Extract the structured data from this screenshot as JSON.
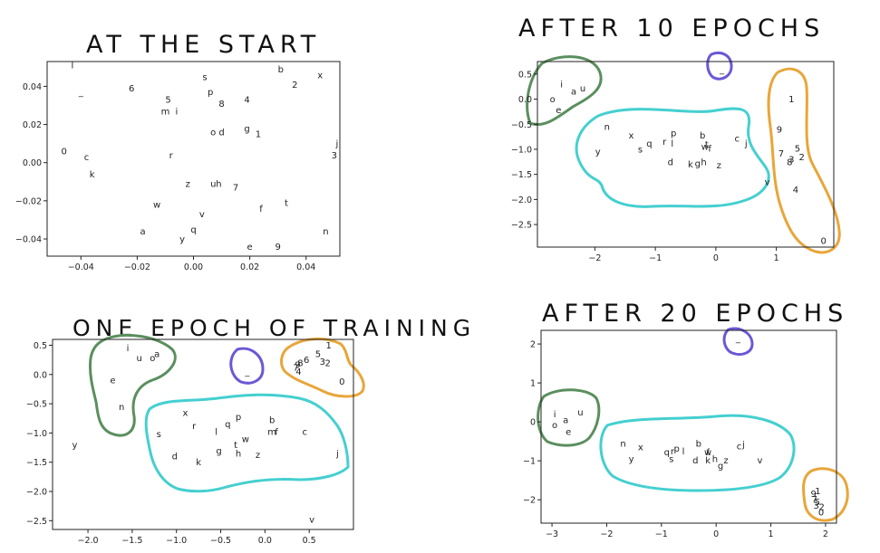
{
  "chart_data": [
    {
      "type": "scatter",
      "title": "AT THE START",
      "xlabel": "",
      "ylabel": "",
      "xlim": [
        -0.052,
        0.052
      ],
      "ylim": [
        -0.049,
        0.053
      ],
      "xticks": [
        -0.04,
        -0.02,
        0.0,
        0.02,
        0.04
      ],
      "xtick_labels": [
        "−0.04",
        "−0.02",
        "0.00",
        "0.02",
        "0.04"
      ],
      "yticks": [
        -0.04,
        -0.02,
        0.0,
        0.02,
        0.04
      ],
      "ytick_labels": [
        "−0.04",
        "−0.02",
        "0.00",
        "0.02",
        "0.04"
      ],
      "grid": false,
      "points": [
        {
          "label": "l",
          "x": -0.043,
          "y": 0.051
        },
        {
          "label": "_",
          "x": -0.04,
          "y": 0.037
        },
        {
          "label": "6",
          "x": -0.022,
          "y": 0.039
        },
        {
          "label": "5",
          "x": -0.009,
          "y": 0.033
        },
        {
          "label": "m",
          "x": -0.01,
          "y": 0.027
        },
        {
          "label": "i",
          "x": -0.006,
          "y": 0.027
        },
        {
          "label": "s",
          "x": 0.004,
          "y": 0.045
        },
        {
          "label": "p",
          "x": 0.006,
          "y": 0.037
        },
        {
          "label": "8",
          "x": 0.01,
          "y": 0.031
        },
        {
          "label": "4",
          "x": 0.019,
          "y": 0.033
        },
        {
          "label": "b",
          "x": 0.031,
          "y": 0.049
        },
        {
          "label": "2",
          "x": 0.036,
          "y": 0.041
        },
        {
          "label": "x",
          "x": 0.045,
          "y": 0.046
        },
        {
          "label": "o",
          "x": 0.007,
          "y": 0.016
        },
        {
          "label": "d",
          "x": 0.01,
          "y": 0.016
        },
        {
          "label": "g",
          "x": 0.019,
          "y": 0.018
        },
        {
          "label": "1",
          "x": 0.023,
          "y": 0.015
        },
        {
          "label": "j",
          "x": 0.051,
          "y": 0.01
        },
        {
          "label": "3",
          "x": 0.05,
          "y": 0.004
        },
        {
          "label": "0",
          "x": -0.046,
          "y": 0.006
        },
        {
          "label": "c",
          "x": -0.038,
          "y": 0.003
        },
        {
          "label": "r",
          "x": -0.008,
          "y": 0.004
        },
        {
          "label": "k",
          "x": -0.036,
          "y": -0.006
        },
        {
          "label": "z",
          "x": -0.002,
          "y": -0.011
        },
        {
          "label": "u",
          "x": 0.007,
          "y": -0.011
        },
        {
          "label": "h",
          "x": 0.009,
          "y": -0.011
        },
        {
          "label": "7",
          "x": 0.015,
          "y": -0.013
        },
        {
          "label": "w",
          "x": -0.013,
          "y": -0.022
        },
        {
          "label": "t",
          "x": 0.033,
          "y": -0.021
        },
        {
          "label": "f",
          "x": 0.024,
          "y": -0.024
        },
        {
          "label": "v",
          "x": 0.003,
          "y": -0.027
        },
        {
          "label": "a",
          "x": -0.018,
          "y": -0.036
        },
        {
          "label": "q",
          "x": 0.0,
          "y": -0.035
        },
        {
          "label": "y",
          "x": -0.004,
          "y": -0.04
        },
        {
          "label": "e",
          "x": 0.02,
          "y": -0.044
        },
        {
          "label": "9",
          "x": 0.03,
          "y": -0.044
        },
        {
          "label": "n",
          "x": 0.047,
          "y": -0.036
        }
      ]
    },
    {
      "type": "scatter",
      "title": "AFTER 10 EPOCHS",
      "xlabel": "",
      "ylabel": "",
      "xlim": [
        -2.95,
        1.95
      ],
      "ylim": [
        -2.95,
        0.75
      ],
      "xticks": [
        -2,
        -1,
        0,
        1
      ],
      "xtick_labels": [
        "−2",
        "−1",
        "0",
        "1"
      ],
      "yticks": [
        0.5,
        0.0,
        -0.5,
        -1.0,
        -1.5,
        -2.0,
        -2.5
      ],
      "ytick_labels": [
        "0.5",
        "0.0",
        "−0.5",
        "−1.0",
        "−1.5",
        "−2.0",
        "−2.5"
      ],
      "grid": false,
      "points": [
        {
          "label": "_",
          "x": 0.1,
          "y": 0.6
        },
        {
          "label": "i",
          "x": -2.55,
          "y": 0.3
        },
        {
          "label": "a",
          "x": -2.35,
          "y": 0.15
        },
        {
          "label": "u",
          "x": -2.2,
          "y": 0.22
        },
        {
          "label": "o",
          "x": -2.7,
          "y": 0.0
        },
        {
          "label": "e",
          "x": -2.6,
          "y": -0.22
        },
        {
          "label": "n",
          "x": -1.8,
          "y": -0.55
        },
        {
          "label": "x",
          "x": -1.4,
          "y": -0.72
        },
        {
          "label": "p",
          "x": -0.7,
          "y": -0.68
        },
        {
          "label": "q",
          "x": -1.1,
          "y": -0.88
        },
        {
          "label": "r",
          "x": -0.85,
          "y": -0.85
        },
        {
          "label": "l",
          "x": -0.72,
          "y": -0.88
        },
        {
          "label": "s",
          "x": -1.25,
          "y": -1.0
        },
        {
          "label": "y",
          "x": -1.95,
          "y": -1.05
        },
        {
          "label": "b",
          "x": -0.22,
          "y": -0.72
        },
        {
          "label": "t",
          "x": -0.15,
          "y": -0.9
        },
        {
          "label": "w",
          "x": -0.18,
          "y": -0.95
        },
        {
          "label": "f",
          "x": -0.1,
          "y": -0.98
        },
        {
          "label": "c",
          "x": 0.35,
          "y": -0.78
        },
        {
          "label": "j",
          "x": 0.5,
          "y": -0.88
        },
        {
          "label": "d",
          "x": -0.75,
          "y": -1.25
        },
        {
          "label": "k",
          "x": -0.42,
          "y": -1.3
        },
        {
          "label": "g",
          "x": -0.3,
          "y": -1.28
        },
        {
          "label": "h",
          "x": -0.2,
          "y": -1.25
        },
        {
          "label": "z",
          "x": 0.05,
          "y": -1.32
        },
        {
          "label": "v",
          "x": 0.85,
          "y": -1.65
        },
        {
          "label": "1",
          "x": 1.25,
          "y": 0.0
        },
        {
          "label": "9",
          "x": 1.05,
          "y": -0.6
        },
        {
          "label": "7",
          "x": 1.08,
          "y": -1.08
        },
        {
          "label": "5",
          "x": 1.35,
          "y": -0.98
        },
        {
          "label": "3",
          "x": 1.25,
          "y": -1.2
        },
        {
          "label": "8",
          "x": 1.22,
          "y": -1.25
        },
        {
          "label": "2",
          "x": 1.42,
          "y": -1.15
        },
        {
          "label": "4",
          "x": 1.32,
          "y": -1.8
        },
        {
          "label": "0",
          "x": 1.78,
          "y": -2.82
        }
      ]
    },
    {
      "type": "scatter",
      "title": "ONE EPOCH OF TRAINING",
      "xlabel": "",
      "ylabel": "",
      "xlim": [
        -2.4,
        1.0
      ],
      "ylim": [
        -2.65,
        0.6
      ],
      "xticks": [
        -2.0,
        -1.5,
        -1.0,
        -0.5,
        0.0,
        0.5
      ],
      "xtick_labels": [
        "−2.0",
        "−1.5",
        "−1.0",
        "−0.5",
        "0.0",
        "0.5"
      ],
      "yticks": [
        0.5,
        0.0,
        -0.5,
        -1.0,
        -1.5,
        -2.0,
        -2.5
      ],
      "ytick_labels": [
        "0.5",
        "0.0",
        "−0.5",
        "−1.0",
        "−1.5",
        "−2.0",
        "−2.5"
      ],
      "grid": false,
      "points": [
        {
          "label": "i",
          "x": -1.55,
          "y": 0.45
        },
        {
          "label": "u",
          "x": -1.42,
          "y": 0.28
        },
        {
          "label": "a",
          "x": -1.22,
          "y": 0.35
        },
        {
          "label": "o",
          "x": -1.27,
          "y": 0.28
        },
        {
          "label": "e",
          "x": -1.72,
          "y": -0.1
        },
        {
          "label": "n",
          "x": -1.62,
          "y": -0.55
        },
        {
          "label": "y",
          "x": -2.15,
          "y": -1.2
        },
        {
          "label": "_",
          "x": -0.2,
          "y": 0.05
        },
        {
          "label": "1",
          "x": 0.72,
          "y": 0.5
        },
        {
          "label": "5",
          "x": 0.6,
          "y": 0.35
        },
        {
          "label": "6",
          "x": 0.47,
          "y": 0.25
        },
        {
          "label": "8",
          "x": 0.4,
          "y": 0.2
        },
        {
          "label": "9",
          "x": 0.37,
          "y": 0.17
        },
        {
          "label": "7",
          "x": 0.35,
          "y": 0.12
        },
        {
          "label": "3",
          "x": 0.65,
          "y": 0.22
        },
        {
          "label": "2",
          "x": 0.71,
          "y": 0.2
        },
        {
          "label": "4",
          "x": 0.38,
          "y": 0.05
        },
        {
          "label": "0",
          "x": 0.87,
          "y": -0.12
        },
        {
          "label": "x",
          "x": -0.9,
          "y": -0.65
        },
        {
          "label": "p",
          "x": -0.3,
          "y": -0.72
        },
        {
          "label": "r",
          "x": -0.8,
          "y": -0.88
        },
        {
          "label": "q",
          "x": -0.42,
          "y": -0.85
        },
        {
          "label": "l",
          "x": -0.55,
          "y": -0.98
        },
        {
          "label": "w",
          "x": -0.22,
          "y": -1.1
        },
        {
          "label": "b",
          "x": 0.08,
          "y": -0.78
        },
        {
          "label": "m",
          "x": 0.08,
          "y": -0.98
        },
        {
          "label": "f",
          "x": 0.13,
          "y": -0.98
        },
        {
          "label": "c",
          "x": 0.45,
          "y": -0.98
        },
        {
          "label": "s",
          "x": -1.2,
          "y": -1.02
        },
        {
          "label": "t",
          "x": -0.33,
          "y": -1.2
        },
        {
          "label": "g",
          "x": -0.52,
          "y": -1.3
        },
        {
          "label": "h",
          "x": -0.3,
          "y": -1.35
        },
        {
          "label": "z",
          "x": -0.08,
          "y": -1.37
        },
        {
          "label": "d",
          "x": -1.02,
          "y": -1.4
        },
        {
          "label": "k",
          "x": -0.75,
          "y": -1.5
        },
        {
          "label": "j",
          "x": 0.82,
          "y": -1.35
        },
        {
          "label": "v",
          "x": 0.53,
          "y": -2.48
        }
      ]
    },
    {
      "type": "scatter",
      "title": "AFTER 20 EPOCHS",
      "xlabel": "",
      "ylabel": "",
      "xlim": [
        -3.2,
        2.2
      ],
      "ylim": [
        -2.6,
        2.35
      ],
      "xticks": [
        -3,
        -2,
        -1,
        0,
        1,
        2
      ],
      "xtick_labels": [
        "−3",
        "−2",
        "−1",
        "0",
        "1",
        "2"
      ],
      "yticks": [
        2,
        1,
        0,
        -1,
        -2
      ],
      "ytick_labels": [
        "2",
        "1",
        "0",
        "−1",
        "−2"
      ],
      "grid": false,
      "points": [
        {
          "label": "_",
          "x": 0.4,
          "y": 2.15
        },
        {
          "label": "i",
          "x": -2.95,
          "y": 0.2
        },
        {
          "label": "a",
          "x": -2.75,
          "y": 0.05
        },
        {
          "label": "u",
          "x": -2.48,
          "y": 0.25
        },
        {
          "label": "o",
          "x": -2.95,
          "y": -0.08
        },
        {
          "label": "e",
          "x": -2.7,
          "y": -0.25
        },
        {
          "label": "n",
          "x": -1.7,
          "y": -0.55
        },
        {
          "label": "x",
          "x": -1.38,
          "y": -0.65
        },
        {
          "label": "y",
          "x": -1.55,
          "y": -0.95
        },
        {
          "label": "q",
          "x": -0.9,
          "y": -0.78
        },
        {
          "label": "r",
          "x": -0.8,
          "y": -0.75
        },
        {
          "label": "p",
          "x": -0.72,
          "y": -0.68
        },
        {
          "label": "l",
          "x": -0.6,
          "y": -0.75
        },
        {
          "label": "s",
          "x": -0.82,
          "y": -0.95
        },
        {
          "label": "b",
          "x": -0.32,
          "y": -0.55
        },
        {
          "label": "w",
          "x": -0.15,
          "y": -0.78
        },
        {
          "label": "f",
          "x": -0.15,
          "y": -0.78
        },
        {
          "label": "d",
          "x": -0.38,
          "y": -0.98
        },
        {
          "label": "k",
          "x": -0.15,
          "y": -0.98
        },
        {
          "label": "h",
          "x": -0.02,
          "y": -0.95
        },
        {
          "label": "g",
          "x": 0.08,
          "y": -1.12
        },
        {
          "label": "z",
          "x": 0.18,
          "y": -0.98
        },
        {
          "label": "c",
          "x": 0.42,
          "y": -0.62
        },
        {
          "label": "j",
          "x": 0.5,
          "y": -0.58
        },
        {
          "label": "v",
          "x": 0.8,
          "y": -0.98
        },
        {
          "label": "9",
          "x": 1.78,
          "y": -1.85
        },
        {
          "label": "1",
          "x": 1.86,
          "y": -1.78
        },
        {
          "label": "7",
          "x": 1.8,
          "y": -1.98
        },
        {
          "label": "5",
          "x": 1.85,
          "y": -2.05
        },
        {
          "label": "3",
          "x": 1.83,
          "y": -2.15
        },
        {
          "label": "2",
          "x": 1.93,
          "y": -2.18
        },
        {
          "label": "0",
          "x": 1.92,
          "y": -2.32
        }
      ]
    }
  ]
}
